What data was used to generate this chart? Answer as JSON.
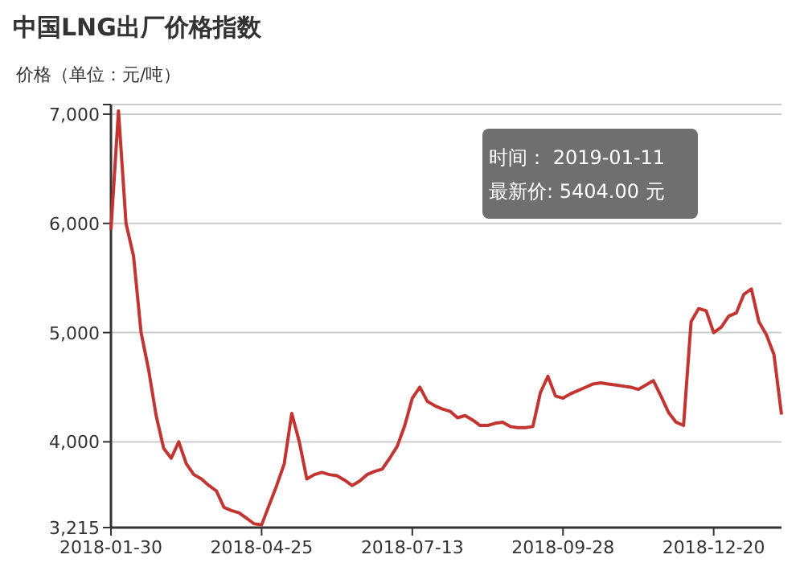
{
  "chart_data": {
    "type": "line",
    "title": "中国LNG出厂价格指数",
    "ylabel": "价格（单位：元/吨）",
    "categories": [
      "2018-01-30",
      null,
      null,
      null,
      null,
      null,
      null,
      null,
      null,
      null,
      null,
      null,
      null,
      null,
      null,
      null,
      null,
      null,
      null,
      null,
      "2018-04-25",
      null,
      null,
      null,
      null,
      null,
      null,
      null,
      null,
      null,
      null,
      null,
      null,
      null,
      null,
      null,
      null,
      null,
      null,
      null,
      "2018-07-13",
      null,
      null,
      null,
      null,
      null,
      null,
      null,
      null,
      null,
      null,
      null,
      null,
      null,
      null,
      null,
      null,
      null,
      null,
      null,
      "2018-09-28",
      null,
      null,
      null,
      null,
      null,
      null,
      null,
      null,
      null,
      null,
      null,
      null,
      null,
      null,
      null,
      null,
      null,
      null,
      null,
      "2018-12-20",
      null,
      null,
      null,
      null,
      null,
      null,
      null,
      null,
      null
    ],
    "series": [
      {
        "color": "#c23531",
        "values": [
          5940,
          7030,
          6000,
          5700,
          5000,
          4660,
          4240,
          3940,
          3850,
          4000,
          3800,
          3700,
          3660,
          3600,
          3550,
          3400,
          3370,
          3350,
          3300,
          3250,
          3240,
          3420,
          3600,
          3800,
          4260,
          4000,
          3660,
          3700,
          3720,
          3700,
          3690,
          3650,
          3600,
          3640,
          3700,
          3730,
          3750,
          3850,
          3960,
          4150,
          4400,
          4500,
          4370,
          4330,
          4300,
          4280,
          4220,
          4240,
          4200,
          4150,
          4150,
          4170,
          4180,
          4140,
          4130,
          4130,
          4140,
          4450,
          4600,
          4420,
          4400,
          4440,
          4470,
          4500,
          4530,
          4540,
          4530,
          4520,
          4510,
          4500,
          4480,
          4520,
          4560,
          4420,
          4270,
          4180,
          4150,
          5100,
          5220,
          5200,
          5000,
          5050,
          5150,
          5180,
          5350,
          5400,
          5100,
          4980,
          4800,
          4250
        ]
      }
    ],
    "ylim": [
      3215,
      7088
    ],
    "yticks": [
      {
        "value": 3215,
        "label": "3,215"
      },
      {
        "value": 4000,
        "label": "4,000"
      },
      {
        "value": 5000,
        "label": "5,000"
      },
      {
        "value": 6000,
        "label": "6,000"
      },
      {
        "value": 7000,
        "label": "7,000"
      },
      {
        "value": 7088,
        "label": null
      }
    ],
    "grid": "y",
    "marker": "none",
    "line_style": "solid",
    "annotations": [
      "时间： 2019-01-11\n最新价: 5404.00 元"
    ]
  }
}
